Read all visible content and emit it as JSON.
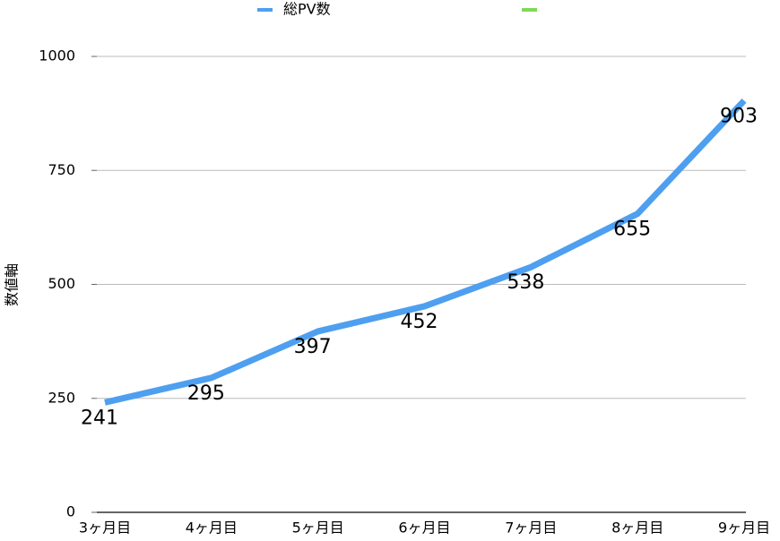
{
  "chart_data": {
    "type": "line",
    "y_label": "数値軸",
    "categories": [
      "3ヶ月目",
      "4ヶ月目",
      "5ヶ月目",
      "6ヶ月目",
      "7ヶ月目",
      "8ヶ月目",
      "9ヶ月目"
    ],
    "series": [
      {
        "name": "総PV数",
        "color": "#4e9ff0",
        "values": [
          241,
          295,
          397,
          452,
          538,
          655,
          903
        ]
      },
      {
        "name": null,
        "color": "#7ed957",
        "values": [
          null,
          null,
          null,
          null,
          null,
          null,
          null
        ]
      }
    ],
    "ylim": [
      0,
      1000
    ],
    "yticks": [
      0,
      250,
      500,
      750,
      1000
    ],
    "grid": true,
    "data_labels": true,
    "legend": "top"
  }
}
